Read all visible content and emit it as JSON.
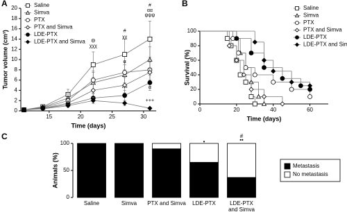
{
  "chart_data": [
    {
      "type": "line",
      "panel": "A",
      "xlabel": "Time (days)",
      "ylabel": "Tumor volume (cm³)",
      "x": [
        11,
        14,
        18,
        22,
        27,
        31
      ],
      "xlim": [
        10.5,
        32
      ],
      "xticks": [
        15,
        20,
        25,
        30
      ],
      "ylim": [
        0,
        20
      ],
      "yticks": [
        0,
        2,
        4,
        6,
        8,
        10,
        12,
        14,
        16,
        18,
        20
      ],
      "color": "#777777",
      "series": [
        {
          "name": "Saline",
          "marker": "square",
          "filled": false,
          "values": [
            0.2,
            0.8,
            3.2,
            9,
            11,
            14
          ],
          "errors": [
            0.1,
            0.3,
            1,
            2.5,
            3,
            3.5
          ]
        },
        {
          "name": "Simva",
          "marker": "triangle",
          "filled": false,
          "values": [
            0.2,
            0.7,
            2.5,
            5.5,
            7,
            10
          ],
          "errors": [
            0.1,
            0.3,
            0.8,
            2,
            2,
            2.5
          ]
        },
        {
          "name": "PTX",
          "marker": "circle",
          "filled": false,
          "values": [
            0.2,
            0.6,
            2,
            6,
            7.5,
            8
          ],
          "errors": [
            0.1,
            0.2,
            0.7,
            1.8,
            2,
            2
          ]
        },
        {
          "name": "PTX and Simva",
          "marker": "diamond",
          "filled": false,
          "values": [
            0.2,
            0.5,
            1.5,
            4,
            5,
            7.5
          ],
          "errors": [
            0.1,
            0.2,
            0.5,
            1.2,
            1.5,
            2
          ]
        },
        {
          "name": "LDE-PTX",
          "marker": "circle",
          "filled": true,
          "values": [
            0.2,
            0.5,
            1.2,
            2.5,
            3,
            5.5
          ],
          "errors": [
            0.1,
            0.2,
            0.4,
            0.8,
            1,
            1.5
          ]
        },
        {
          "name": "LDE-PTX and Simva",
          "marker": "diamond",
          "filled": true,
          "values": [
            0.2,
            0.4,
            1,
            2,
            1.5,
            0.5
          ],
          "errors": [
            0.1,
            0.1,
            0.3,
            0.6,
            0.5,
            0.2
          ]
        }
      ],
      "annotations": [
        "Θ",
        "χχχ",
        "#",
        "χχ",
        "α",
        "***",
        "#",
        "αα",
        "ψψψ",
        "α",
        "+++"
      ]
    },
    {
      "type": "step",
      "panel": "B",
      "xlabel": "Time (days)",
      "ylabel": "Survival (%)",
      "xlim": [
        0,
        70
      ],
      "xticks": [
        0,
        20,
        40,
        60
      ],
      "ylim": [
        0,
        100
      ],
      "yticks": [
        0,
        20,
        40,
        60,
        80,
        100
      ],
      "color": "#777777",
      "series": [
        {
          "name": "Saline",
          "marker": "square",
          "filled": false,
          "x": [
            0,
            15,
            17,
            20,
            22,
            25,
            28,
            30
          ],
          "values": [
            100,
            90,
            80,
            60,
            40,
            30,
            10,
            0
          ]
        },
        {
          "name": "Simva",
          "marker": "triangle",
          "filled": false,
          "x": [
            0,
            20,
            22,
            25,
            28,
            32,
            35
          ],
          "values": [
            100,
            90,
            70,
            50,
            30,
            10,
            0
          ]
        },
        {
          "name": "PTX",
          "marker": "circle",
          "filled": false,
          "x": [
            0,
            18,
            21,
            25,
            30,
            40,
            50,
            60
          ],
          "values": [
            100,
            90,
            70,
            50,
            40,
            30,
            20,
            10
          ]
        },
        {
          "name": "PTX and Simva",
          "marker": "diamond",
          "filled": false,
          "x": [
            0,
            16,
            20,
            24,
            28,
            35,
            45
          ],
          "values": [
            100,
            80,
            60,
            40,
            20,
            10,
            0
          ]
        },
        {
          "name": "LDE-PTX",
          "marker": "circle",
          "filled": true,
          "x": [
            0,
            20,
            28,
            35,
            45,
            55,
            60
          ],
          "values": [
            100,
            90,
            70,
            50,
            35,
            25,
            20
          ]
        },
        {
          "name": "LDE-PTX and Simva",
          "marker": "diamond",
          "filled": true,
          "x": [
            0,
            30,
            35,
            40,
            50,
            60
          ],
          "values": [
            100,
            85,
            60,
            45,
            30,
            25
          ]
        }
      ]
    },
    {
      "type": "stacked_bar",
      "panel": "C",
      "ylabel": "Animals (%)",
      "categories": [
        "Saline",
        "Simva",
        "PTX and Simva",
        "LDE-PTX",
        "LDE-PTX and Simva"
      ],
      "ylim": [
        0,
        100
      ],
      "yticks": [
        0,
        50,
        100
      ],
      "series": [
        {
          "name": "Metastasis",
          "color": "#000000",
          "values": [
            100,
            100,
            90,
            65,
            37
          ]
        },
        {
          "name": "No metastasis",
          "color": "#ffffff",
          "values": [
            0,
            0,
            10,
            35,
            63
          ]
        }
      ],
      "annotations": [
        "•",
        "#",
        "••"
      ]
    }
  ]
}
